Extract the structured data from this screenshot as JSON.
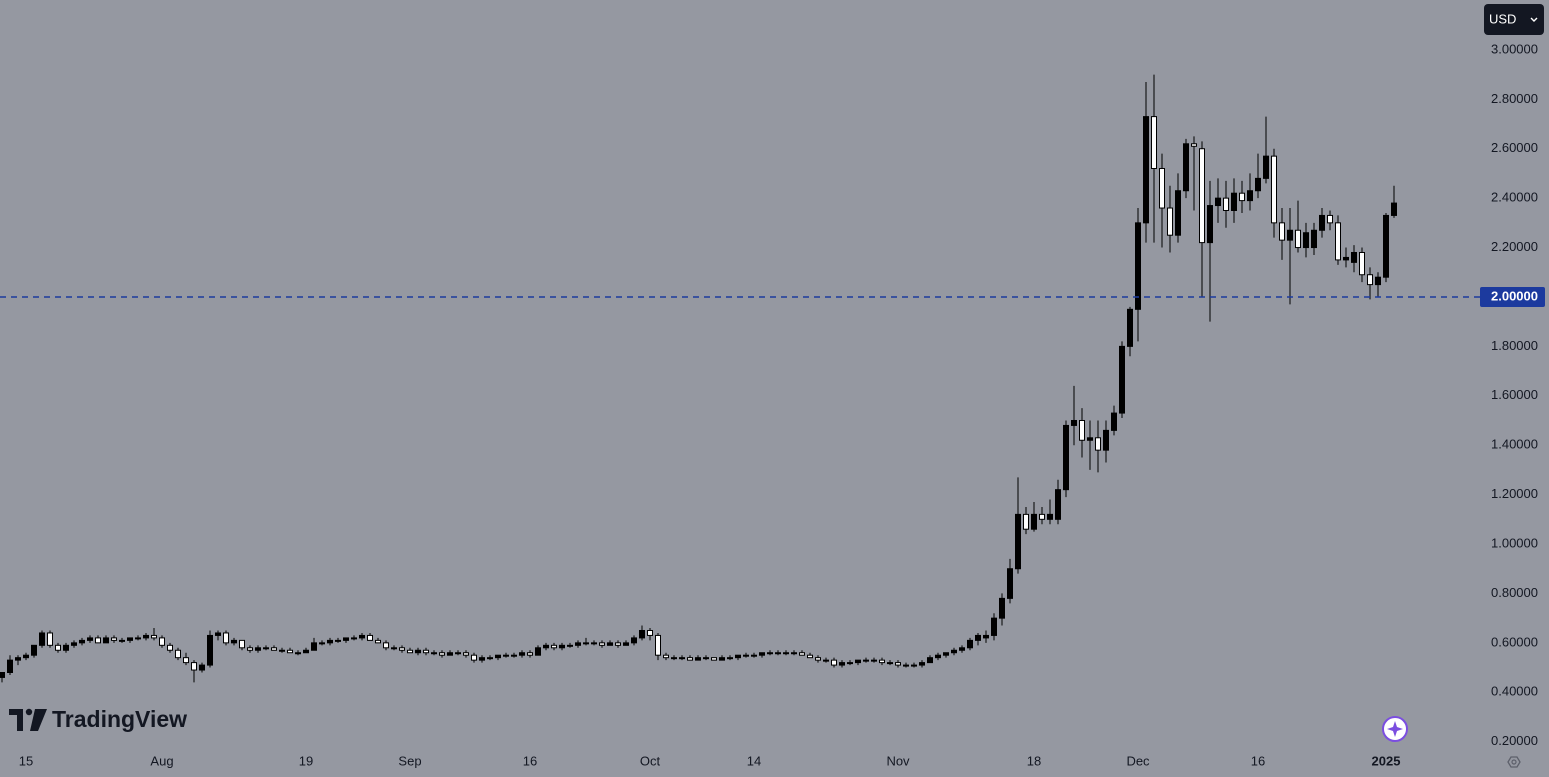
{
  "chart_data": {
    "type": "candlestick",
    "currency": "USD",
    "logo": "TradingView",
    "background": "#9598a1",
    "up_color": "#000000",
    "down_color": "#ffffff",
    "wick_color": "#000000",
    "ylim": [
      0.057,
      3.202
    ],
    "yticks": [
      {
        "value": 0.2,
        "label": "0.20000"
      },
      {
        "value": 0.4,
        "label": "0.40000"
      },
      {
        "value": 0.6,
        "label": "0.60000"
      },
      {
        "value": 0.8,
        "label": "0.80000"
      },
      {
        "value": 1,
        "label": "1.00000"
      },
      {
        "value": 1.2,
        "label": "1.20000"
      },
      {
        "value": 1.4,
        "label": "1.40000"
      },
      {
        "value": 1.6,
        "label": "1.60000"
      },
      {
        "value": 1.8,
        "label": "1.80000"
      },
      {
        "value": 2,
        "label": "2.00000"
      },
      {
        "value": 2.2,
        "label": "2.20000"
      },
      {
        "value": 2.4,
        "label": "2.40000"
      },
      {
        "value": 2.6,
        "label": "2.60000"
      },
      {
        "value": 2.8,
        "label": "2.80000"
      },
      {
        "value": 3,
        "label": "3.00000"
      }
    ],
    "price_line": {
      "value": 2,
      "label": "2.00000",
      "color": "#1c3a9e"
    },
    "categories": [
      null,
      null,
      null,
      "15",
      null,
      null,
      null,
      null,
      null,
      null,
      null,
      null,
      null,
      null,
      null,
      null,
      null,
      null,
      null,
      null,
      "Aug",
      null,
      null,
      null,
      null,
      null,
      null,
      null,
      null,
      null,
      null,
      null,
      null,
      null,
      null,
      null,
      null,
      null,
      "19",
      null,
      null,
      null,
      null,
      null,
      null,
      null,
      null,
      null,
      null,
      null,
      null,
      "Sep",
      null,
      null,
      null,
      null,
      null,
      null,
      null,
      null,
      null,
      null,
      null,
      null,
      null,
      null,
      "16",
      null,
      null,
      null,
      null,
      null,
      null,
      null,
      null,
      null,
      null,
      null,
      null,
      null,
      null,
      "Oct",
      null,
      null,
      null,
      null,
      null,
      null,
      null,
      null,
      null,
      null,
      null,
      null,
      "14",
      null,
      null,
      null,
      null,
      null,
      null,
      null,
      null,
      null,
      null,
      null,
      null,
      null,
      null,
      null,
      null,
      null,
      "Nov",
      null,
      null,
      null,
      null,
      null,
      null,
      null,
      null,
      null,
      null,
      null,
      null,
      null,
      null,
      null,
      null,
      "18",
      null,
      null,
      null,
      null,
      null,
      null,
      null,
      null,
      null,
      null,
      null,
      null,
      "Dec",
      null,
      null,
      null,
      null,
      null,
      null,
      null,
      null,
      null,
      null,
      null,
      null,
      null,
      null,
      "16",
      null,
      null,
      null,
      null,
      null,
      null,
      null,
      null,
      null,
      null,
      null,
      null,
      null,
      null,
      null,
      "2025",
      null
    ],
    "ohlc": [
      [
        0.46,
        0.48,
        0.44,
        0.48
      ],
      [
        0.48,
        0.55,
        0.47,
        0.53
      ],
      [
        0.53,
        0.55,
        0.51,
        0.54
      ],
      [
        0.54,
        0.56,
        0.53,
        0.55
      ],
      [
        0.55,
        0.59,
        0.54,
        0.59
      ],
      [
        0.59,
        0.65,
        0.58,
        0.64
      ],
      [
        0.64,
        0.65,
        0.58,
        0.59
      ],
      [
        0.59,
        0.6,
        0.56,
        0.57
      ],
      [
        0.57,
        0.6,
        0.56,
        0.59
      ],
      [
        0.59,
        0.61,
        0.58,
        0.6
      ],
      [
        0.6,
        0.62,
        0.59,
        0.61
      ],
      [
        0.61,
        0.63,
        0.6,
        0.62
      ],
      [
        0.62,
        0.63,
        0.6,
        0.6
      ],
      [
        0.6,
        0.63,
        0.6,
        0.62
      ],
      [
        0.62,
        0.63,
        0.6,
        0.61
      ],
      [
        0.61,
        0.62,
        0.6,
        0.61
      ],
      [
        0.61,
        0.62,
        0.6,
        0.62
      ],
      [
        0.62,
        0.63,
        0.61,
        0.62
      ],
      [
        0.62,
        0.64,
        0.61,
        0.63
      ],
      [
        0.63,
        0.66,
        0.61,
        0.62
      ],
      [
        0.62,
        0.63,
        0.58,
        0.59
      ],
      [
        0.59,
        0.6,
        0.56,
        0.57
      ],
      [
        0.57,
        0.58,
        0.53,
        0.54
      ],
      [
        0.54,
        0.56,
        0.51,
        0.52
      ],
      [
        0.52,
        0.53,
        0.44,
        0.49
      ],
      [
        0.49,
        0.52,
        0.48,
        0.51
      ],
      [
        0.51,
        0.65,
        0.5,
        0.63
      ],
      [
        0.63,
        0.65,
        0.61,
        0.64
      ],
      [
        0.64,
        0.65,
        0.59,
        0.6
      ],
      [
        0.6,
        0.62,
        0.59,
        0.61
      ],
      [
        0.61,
        0.61,
        0.57,
        0.58
      ],
      [
        0.58,
        0.59,
        0.56,
        0.57
      ],
      [
        0.57,
        0.59,
        0.56,
        0.58
      ],
      [
        0.58,
        0.59,
        0.57,
        0.58
      ],
      [
        0.58,
        0.59,
        0.57,
        0.57
      ],
      [
        0.57,
        0.58,
        0.56,
        0.57
      ],
      [
        0.57,
        0.58,
        0.56,
        0.56
      ],
      [
        0.56,
        0.57,
        0.55,
        0.56
      ],
      [
        0.56,
        0.58,
        0.56,
        0.57
      ],
      [
        0.57,
        0.62,
        0.57,
        0.6
      ],
      [
        0.6,
        0.61,
        0.59,
        0.6
      ],
      [
        0.6,
        0.62,
        0.59,
        0.61
      ],
      [
        0.61,
        0.62,
        0.6,
        0.61
      ],
      [
        0.61,
        0.62,
        0.6,
        0.62
      ],
      [
        0.62,
        0.63,
        0.61,
        0.62
      ],
      [
        0.62,
        0.64,
        0.61,
        0.63
      ],
      [
        0.63,
        0.64,
        0.61,
        0.61
      ],
      [
        0.61,
        0.62,
        0.6,
        0.6
      ],
      [
        0.6,
        0.61,
        0.57,
        0.58
      ],
      [
        0.58,
        0.59,
        0.57,
        0.58
      ],
      [
        0.58,
        0.59,
        0.56,
        0.57
      ],
      [
        0.57,
        0.58,
        0.56,
        0.56
      ],
      [
        0.56,
        0.58,
        0.55,
        0.57
      ],
      [
        0.57,
        0.58,
        0.55,
        0.56
      ],
      [
        0.56,
        0.57,
        0.55,
        0.56
      ],
      [
        0.56,
        0.57,
        0.54,
        0.55
      ],
      [
        0.55,
        0.57,
        0.55,
        0.56
      ],
      [
        0.56,
        0.57,
        0.55,
        0.56
      ],
      [
        0.56,
        0.57,
        0.54,
        0.55
      ],
      [
        0.55,
        0.56,
        0.52,
        0.53
      ],
      [
        0.53,
        0.55,
        0.52,
        0.54
      ],
      [
        0.54,
        0.55,
        0.53,
        0.54
      ],
      [
        0.54,
        0.55,
        0.53,
        0.55
      ],
      [
        0.55,
        0.56,
        0.54,
        0.55
      ],
      [
        0.55,
        0.56,
        0.54,
        0.55
      ],
      [
        0.55,
        0.57,
        0.54,
        0.56
      ],
      [
        0.56,
        0.57,
        0.54,
        0.55
      ],
      [
        0.55,
        0.59,
        0.55,
        0.58
      ],
      [
        0.58,
        0.6,
        0.57,
        0.59
      ],
      [
        0.59,
        0.6,
        0.57,
        0.58
      ],
      [
        0.58,
        0.6,
        0.57,
        0.59
      ],
      [
        0.59,
        0.6,
        0.58,
        0.59
      ],
      [
        0.59,
        0.61,
        0.58,
        0.6
      ],
      [
        0.6,
        0.62,
        0.59,
        0.6
      ],
      [
        0.6,
        0.61,
        0.59,
        0.6
      ],
      [
        0.6,
        0.61,
        0.58,
        0.59
      ],
      [
        0.59,
        0.61,
        0.59,
        0.6
      ],
      [
        0.6,
        0.61,
        0.58,
        0.59
      ],
      [
        0.59,
        0.61,
        0.59,
        0.6
      ],
      [
        0.6,
        0.63,
        0.59,
        0.62
      ],
      [
        0.62,
        0.67,
        0.61,
        0.65
      ],
      [
        0.65,
        0.66,
        0.61,
        0.63
      ],
      [
        0.63,
        0.64,
        0.53,
        0.55
      ],
      [
        0.55,
        0.56,
        0.53,
        0.54
      ],
      [
        0.54,
        0.55,
        0.53,
        0.54
      ],
      [
        0.54,
        0.55,
        0.53,
        0.54
      ],
      [
        0.54,
        0.55,
        0.53,
        0.53
      ],
      [
        0.53,
        0.55,
        0.53,
        0.54
      ],
      [
        0.54,
        0.55,
        0.53,
        0.54
      ],
      [
        0.54,
        0.54,
        0.53,
        0.53
      ],
      [
        0.53,
        0.55,
        0.53,
        0.54
      ],
      [
        0.54,
        0.55,
        0.53,
        0.54
      ],
      [
        0.54,
        0.55,
        0.53,
        0.55
      ],
      [
        0.55,
        0.56,
        0.54,
        0.55
      ],
      [
        0.55,
        0.56,
        0.54,
        0.55
      ],
      [
        0.55,
        0.56,
        0.54,
        0.56
      ],
      [
        0.56,
        0.57,
        0.55,
        0.56
      ],
      [
        0.56,
        0.57,
        0.55,
        0.56
      ],
      [
        0.56,
        0.57,
        0.55,
        0.56
      ],
      [
        0.56,
        0.57,
        0.55,
        0.56
      ],
      [
        0.56,
        0.57,
        0.55,
        0.55
      ],
      [
        0.55,
        0.56,
        0.54,
        0.54
      ],
      [
        0.54,
        0.55,
        0.52,
        0.53
      ],
      [
        0.53,
        0.54,
        0.52,
        0.53
      ],
      [
        0.53,
        0.54,
        0.5,
        0.51
      ],
      [
        0.51,
        0.53,
        0.5,
        0.52
      ],
      [
        0.52,
        0.53,
        0.51,
        0.52
      ],
      [
        0.52,
        0.53,
        0.51,
        0.53
      ],
      [
        0.53,
        0.54,
        0.52,
        0.53
      ],
      [
        0.53,
        0.54,
        0.52,
        0.53
      ],
      [
        0.53,
        0.54,
        0.51,
        0.52
      ],
      [
        0.52,
        0.53,
        0.51,
        0.52
      ],
      [
        0.52,
        0.53,
        0.5,
        0.51
      ],
      [
        0.51,
        0.52,
        0.5,
        0.51
      ],
      [
        0.51,
        0.52,
        0.5,
        0.51
      ],
      [
        0.51,
        0.53,
        0.5,
        0.52
      ],
      [
        0.52,
        0.55,
        0.52,
        0.54
      ],
      [
        0.54,
        0.56,
        0.53,
        0.55
      ],
      [
        0.55,
        0.56,
        0.54,
        0.56
      ],
      [
        0.56,
        0.58,
        0.55,
        0.57
      ],
      [
        0.57,
        0.59,
        0.56,
        0.58
      ],
      [
        0.58,
        0.62,
        0.57,
        0.61
      ],
      [
        0.61,
        0.64,
        0.59,
        0.63
      ],
      [
        0.62,
        0.65,
        0.6,
        0.63
      ],
      [
        0.63,
        0.72,
        0.61,
        0.7
      ],
      [
        0.7,
        0.8,
        0.67,
        0.78
      ],
      [
        0.78,
        0.94,
        0.76,
        0.9
      ],
      [
        0.9,
        1.27,
        0.88,
        1.12
      ],
      [
        1.12,
        1.15,
        1.04,
        1.06
      ],
      [
        1.06,
        1.17,
        1.05,
        1.12
      ],
      [
        1.12,
        1.15,
        1.08,
        1.1
      ],
      [
        1.1,
        1.18,
        1.08,
        1.12
      ],
      [
        1.1,
        1.26,
        1.08,
        1.22
      ],
      [
        1.22,
        1.5,
        1.19,
        1.48
      ],
      [
        1.48,
        1.64,
        1.4,
        1.5
      ],
      [
        1.5,
        1.55,
        1.35,
        1.42
      ],
      [
        1.42,
        1.5,
        1.3,
        1.43
      ],
      [
        1.43,
        1.5,
        1.29,
        1.38
      ],
      [
        1.38,
        1.5,
        1.33,
        1.46
      ],
      [
        1.46,
        1.56,
        1.44,
        1.53
      ],
      [
        1.53,
        1.82,
        1.51,
        1.8
      ],
      [
        1.8,
        1.96,
        1.76,
        1.95
      ],
      [
        1.95,
        2.36,
        1.82,
        2.3
      ],
      [
        2.3,
        2.87,
        2.22,
        2.73
      ],
      [
        2.73,
        2.9,
        2.22,
        2.52
      ],
      [
        2.52,
        2.58,
        2.2,
        2.36
      ],
      [
        2.36,
        2.45,
        2.18,
        2.25
      ],
      [
        2.25,
        2.5,
        2.22,
        2.43
      ],
      [
        2.43,
        2.64,
        2.4,
        2.62
      ],
      [
        2.62,
        2.65,
        2.35,
        2.61
      ],
      [
        2.6,
        2.63,
        2,
        2.22
      ],
      [
        2.22,
        2.47,
        1.9,
        2.37
      ],
      [
        2.37,
        2.48,
        2.3,
        2.4
      ],
      [
        2.4,
        2.47,
        2.28,
        2.35
      ],
      [
        2.35,
        2.48,
        2.3,
        2.42
      ],
      [
        2.42,
        2.47,
        2.34,
        2.39
      ],
      [
        2.39,
        2.5,
        2.35,
        2.43
      ],
      [
        2.43,
        2.58,
        2.4,
        2.48
      ],
      [
        2.48,
        2.73,
        2.46,
        2.57
      ],
      [
        2.57,
        2.6,
        2.24,
        2.3
      ],
      [
        2.3,
        2.36,
        2.15,
        2.23
      ],
      [
        2.23,
        2.36,
        1.97,
        2.27
      ],
      [
        2.27,
        2.39,
        2.18,
        2.2
      ],
      [
        2.2,
        2.3,
        2.16,
        2.26
      ],
      [
        2.2,
        2.3,
        2.17,
        2.27
      ],
      [
        2.27,
        2.36,
        2.24,
        2.33
      ],
      [
        2.33,
        2.35,
        2.27,
        2.3
      ],
      [
        2.3,
        2.33,
        2.13,
        2.15
      ],
      [
        2.15,
        2.2,
        2.12,
        2.16
      ],
      [
        2.14,
        2.21,
        2.1,
        2.18
      ],
      [
        2.18,
        2.2,
        2.06,
        2.09
      ],
      [
        2.09,
        2.12,
        1.99,
        2.05
      ],
      [
        2.05,
        2.1,
        2,
        2.08
      ],
      [
        2.08,
        2.34,
        2.06,
        2.33
      ],
      [
        2.33,
        2.45,
        2.32,
        2.38
      ]
    ]
  }
}
